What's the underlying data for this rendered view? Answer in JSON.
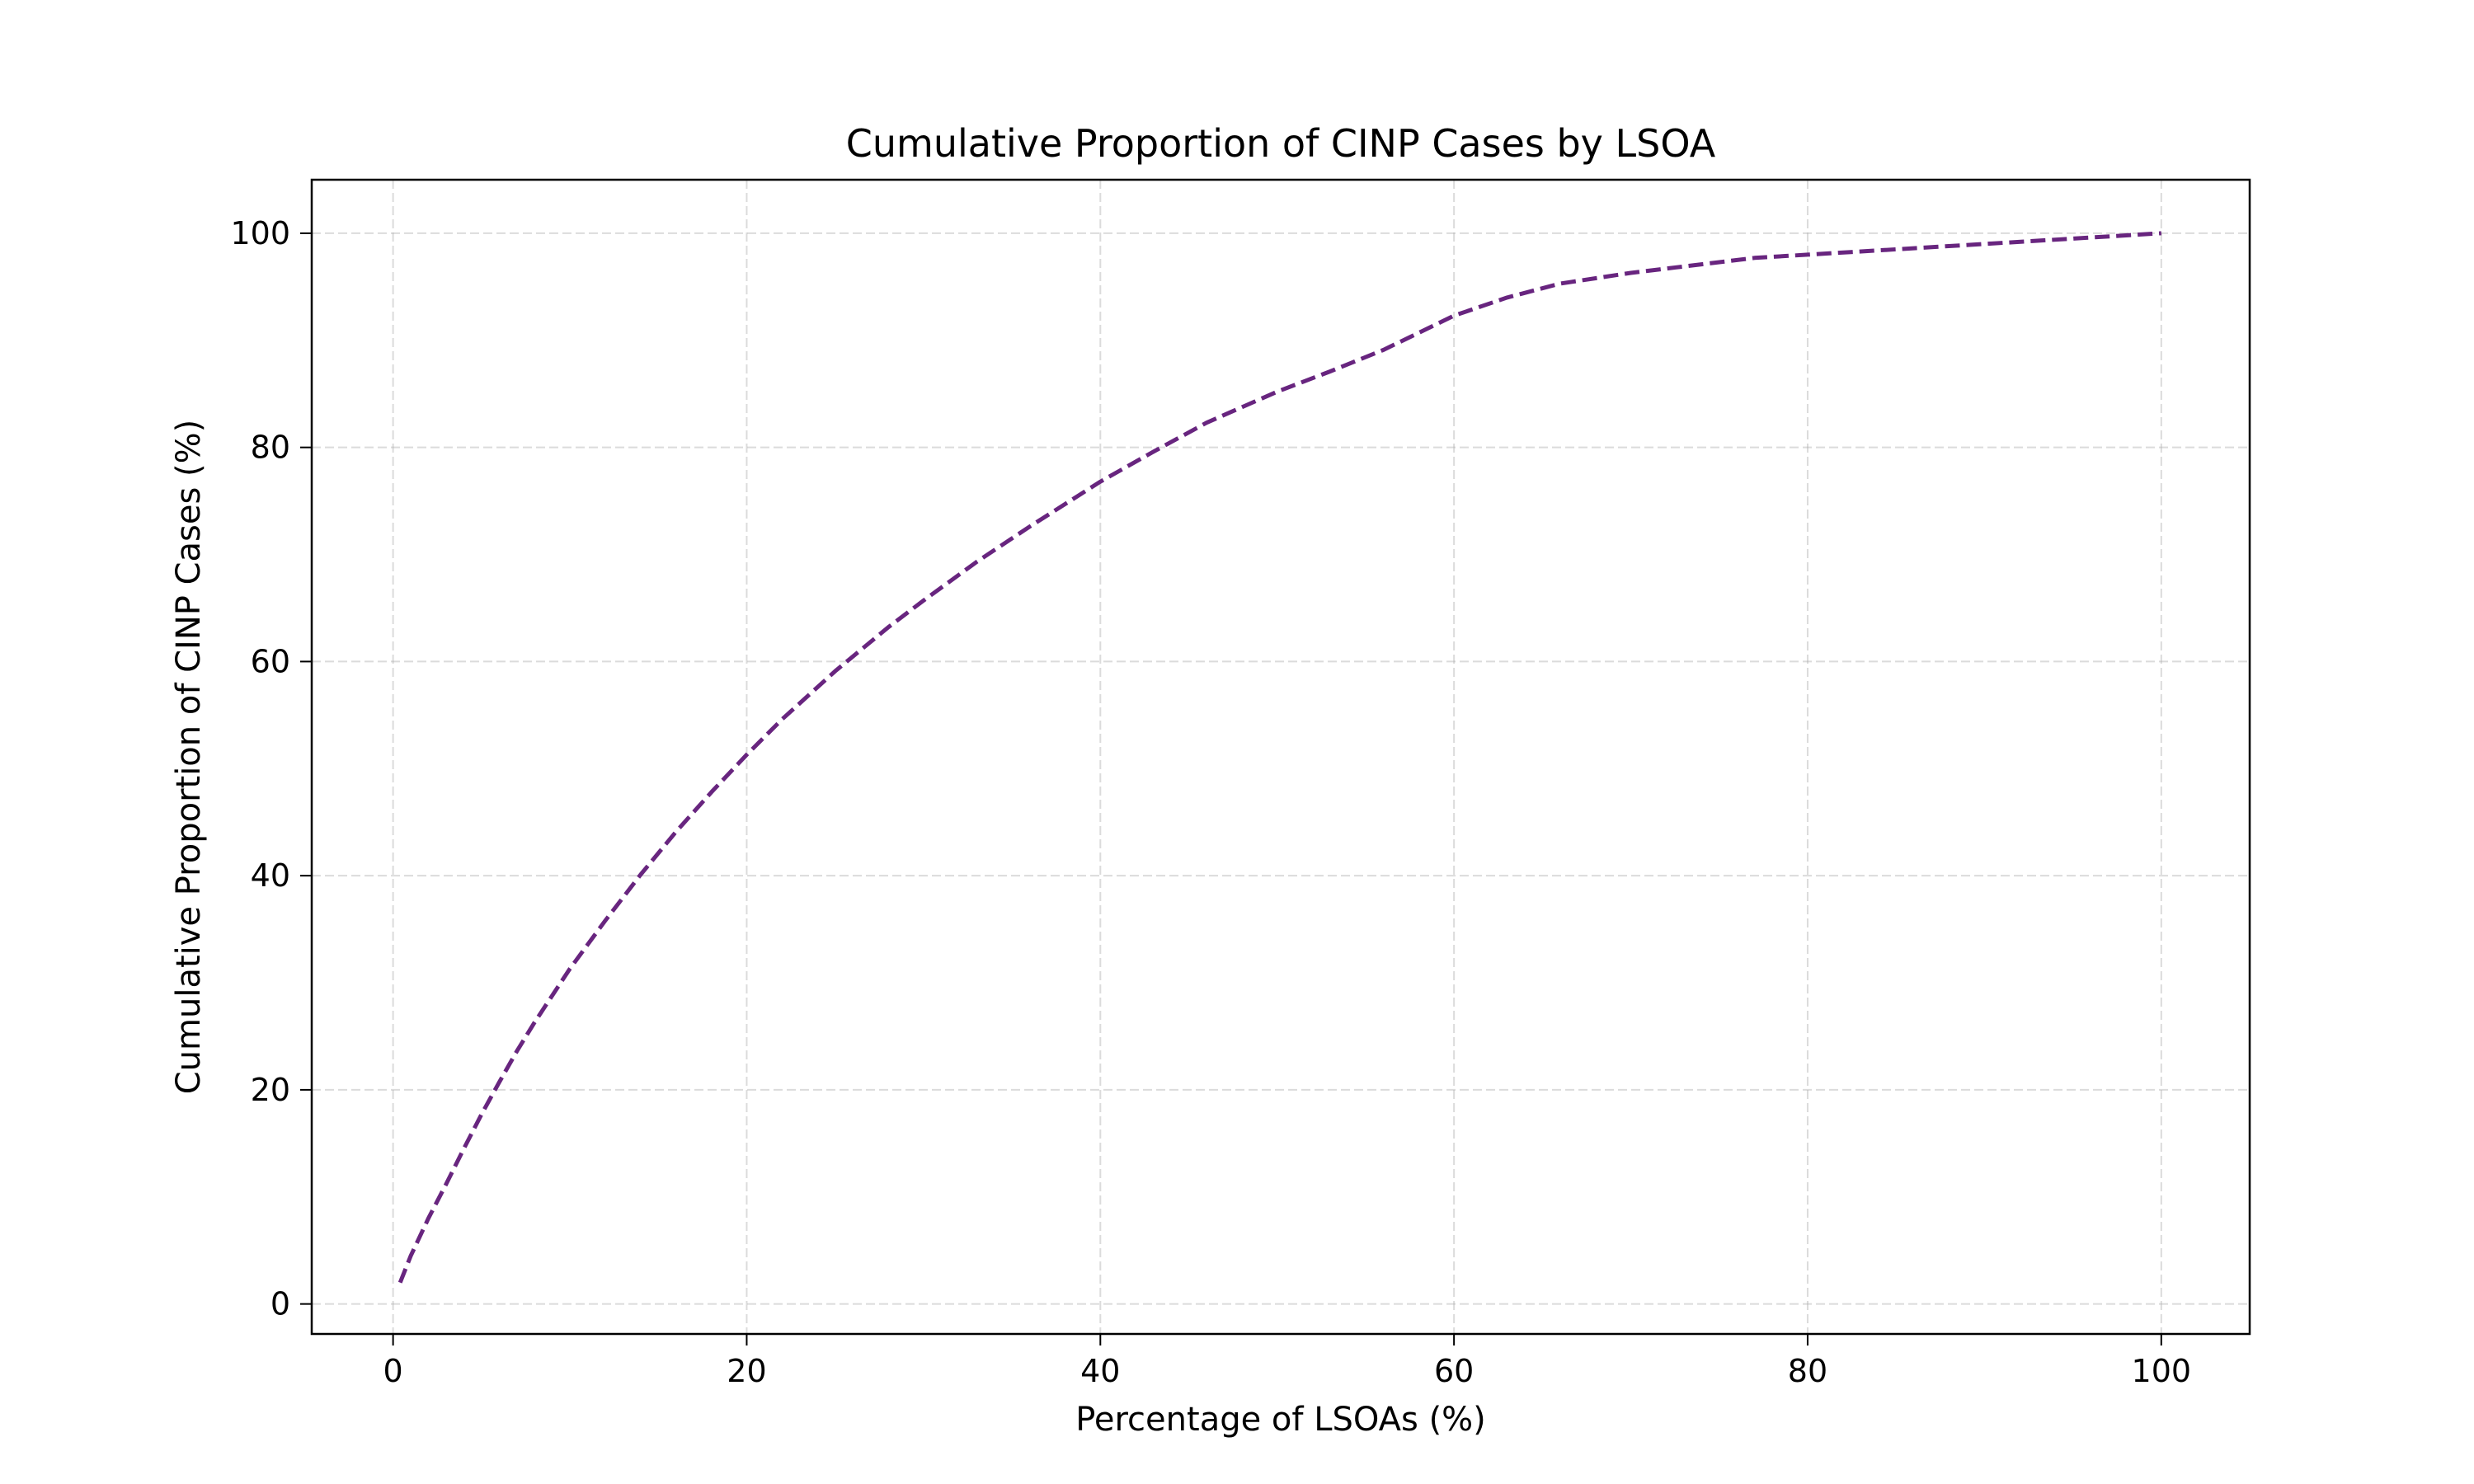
{
  "chart_data": {
    "type": "line",
    "title": "Cumulative Proportion of CINP Cases by LSOA",
    "xlabel": "Percentage of LSOAs (%)",
    "ylabel": "Cumulative Proportion of CINP Cases (%)",
    "xlim": [
      -4.6,
      105
    ],
    "ylim": [
      -2.8,
      105
    ],
    "xticks": [
      0,
      20,
      40,
      60,
      80,
      100
    ],
    "yticks": [
      0,
      20,
      40,
      60,
      80,
      100
    ],
    "grid": true,
    "legend": "none",
    "series": [
      {
        "color": "#68257f",
        "line_style": "dashed",
        "x": [
          0.4,
          1,
          2,
          3,
          4,
          5,
          6,
          7,
          8,
          10,
          12,
          14,
          16,
          18,
          20,
          22,
          25,
          28,
          30,
          33,
          36,
          40,
          43,
          46,
          50,
          53,
          56,
          60,
          63,
          66,
          70,
          73,
          77,
          80,
          85,
          90,
          95,
          100
        ],
        "y": [
          2,
          4.5,
          8,
          11.2,
          14.5,
          17.7,
          20.7,
          23.6,
          26.3,
          31.3,
          35.8,
          40.1,
          44.1,
          47.8,
          51.3,
          54.6,
          59.1,
          63.2,
          65.7,
          69.3,
          72.6,
          76.8,
          79.6,
          82.3,
          85.2,
          87.1,
          89.1,
          92.3,
          94,
          95.3,
          96.3,
          96.9,
          97.7,
          98,
          98.5,
          99,
          99.5,
          100
        ]
      }
    ]
  }
}
